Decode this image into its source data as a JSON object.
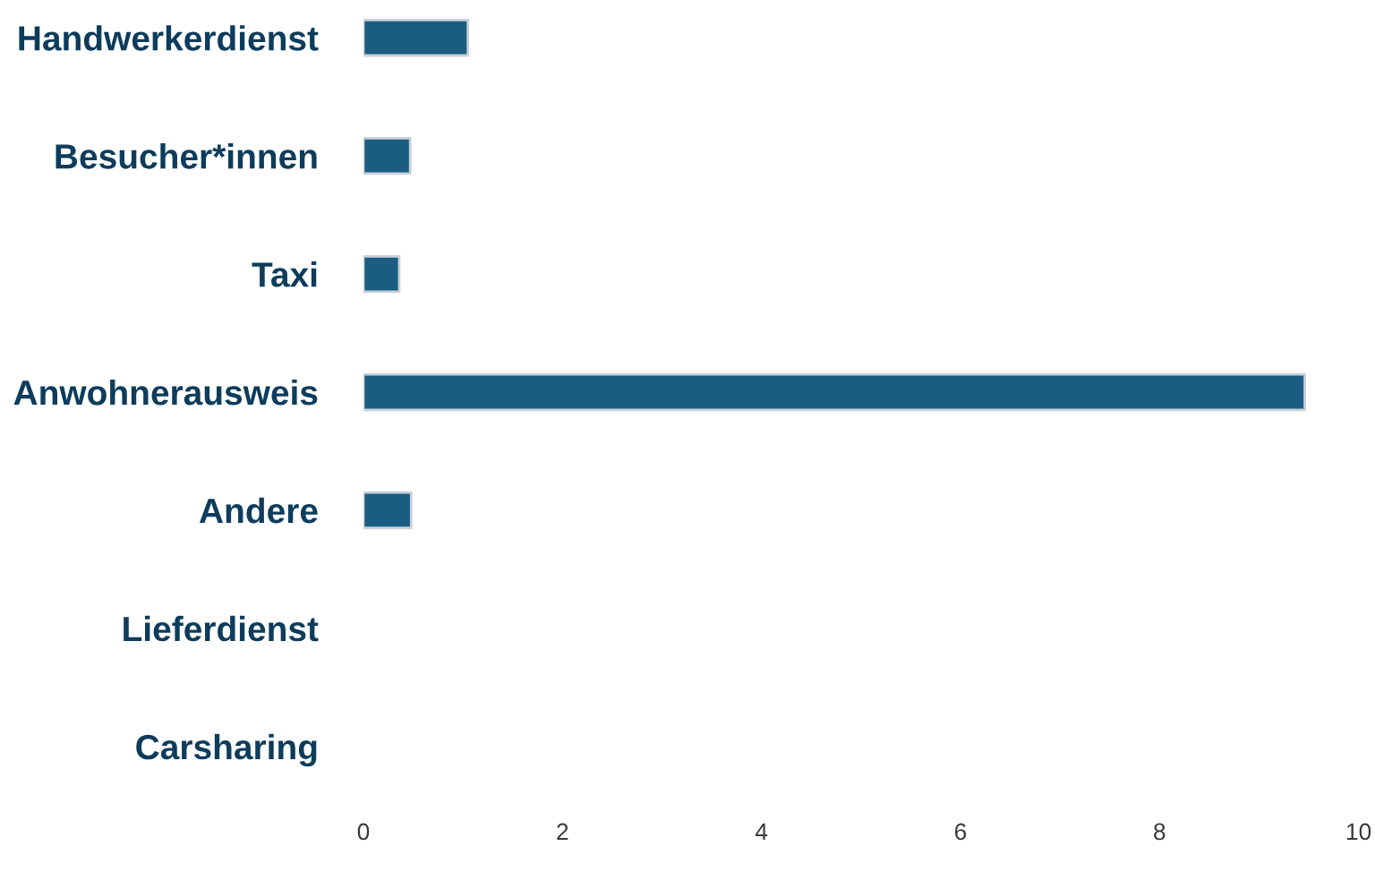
{
  "chart_data": {
    "type": "bar",
    "orientation": "horizontal",
    "categories": [
      "Handwerkerdienst",
      "Besucher*innen",
      "Taxi",
      "Anwohnerausweis",
      "Andere",
      "Lieferdienst",
      "Carsharing"
    ],
    "values": [
      1.05,
      0.47,
      0.36,
      9.46,
      0.48,
      0,
      0
    ],
    "color": "#1b5d82",
    "xlim": [
      0,
      10
    ],
    "xticks": [
      0,
      2,
      4,
      6,
      8,
      10
    ],
    "grid": false
  }
}
